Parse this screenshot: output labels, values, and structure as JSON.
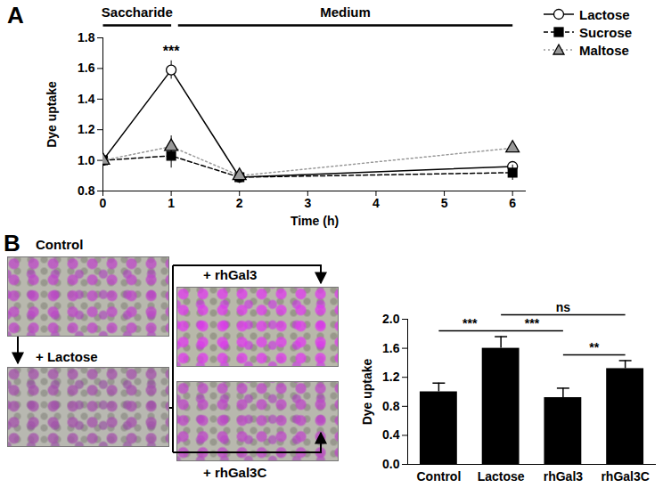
{
  "chart_data": [
    {
      "panel": "A",
      "type": "line",
      "x": [
        0,
        1,
        2,
        6
      ],
      "xlim": [
        0,
        6.2
      ],
      "xticks": [
        0,
        1,
        2,
        3,
        4,
        5,
        6
      ],
      "ylim": [
        0.8,
        1.8
      ],
      "yticks": [
        0.8,
        {
          "value": 1,
          "label": "1.0"
        },
        1.2,
        1.4,
        1.6,
        1.8
      ],
      "x_label": "Time (h)",
      "y_label": "Dye uptake",
      "legend": "top-right",
      "phases": [
        {
          "label": "Saccharide",
          "x": [
            0,
            1
          ]
        },
        {
          "label": "Medium",
          "x": [
            1.1,
            6
          ]
        }
      ],
      "annotations": [
        {
          "text": "***",
          "x": 1,
          "y": 1.68
        }
      ],
      "series": [
        {
          "name": "Lactose",
          "color": "#000000",
          "marker": "circle-open",
          "line_style": "solid",
          "values": [
            1.0,
            1.59,
            0.89,
            0.96
          ],
          "errors": [
            0.02,
            0.06,
            0.04,
            0.03
          ]
        },
        {
          "name": "Sucrose",
          "color": "#000000",
          "marker": "square",
          "line_style": "dashed",
          "values": [
            1.0,
            1.03,
            0.89,
            0.92
          ],
          "errors": [
            0.02,
            0.08,
            0.03,
            0.05
          ]
        },
        {
          "name": "Maltose",
          "color": "#999999",
          "marker": "triangle",
          "line_style": "dotted",
          "values": [
            1.0,
            1.09,
            0.9,
            1.08
          ],
          "errors": [
            0.02,
            0.07,
            0.04,
            0.02
          ]
        }
      ]
    },
    {
      "panel": "B",
      "type": "bar",
      "categories": [
        "Control",
        "Lactose",
        "rhGal3",
        "rhGal3C"
      ],
      "values": [
        1.0,
        1.6,
        0.92,
        1.32
      ],
      "errors": [
        0.12,
        0.16,
        0.13,
        0.11
      ],
      "color": "#000000",
      "ylim": [
        0,
        2
      ],
      "yticks": [
        {
          "value": 0,
          "label": "0.0"
        },
        0.4,
        0.8,
        1.2,
        1.6,
        {
          "value": 2,
          "label": "2.0"
        }
      ],
      "y_label": "Dye uptake",
      "comparisons": [
        {
          "from": "Control",
          "to": "Lactose",
          "label": "***"
        },
        {
          "from": "Lactose",
          "to": "rhGal3",
          "label": "***"
        },
        {
          "from": "rhGal3",
          "to": "rhGal3C",
          "label": "**"
        },
        {
          "from": "Lactose",
          "to": "rhGal3C",
          "label": "ns"
        }
      ],
      "micrographs": [
        "Control",
        "+ Lactose",
        "+ rhGal3",
        "+ rhGal3C"
      ]
    }
  ]
}
